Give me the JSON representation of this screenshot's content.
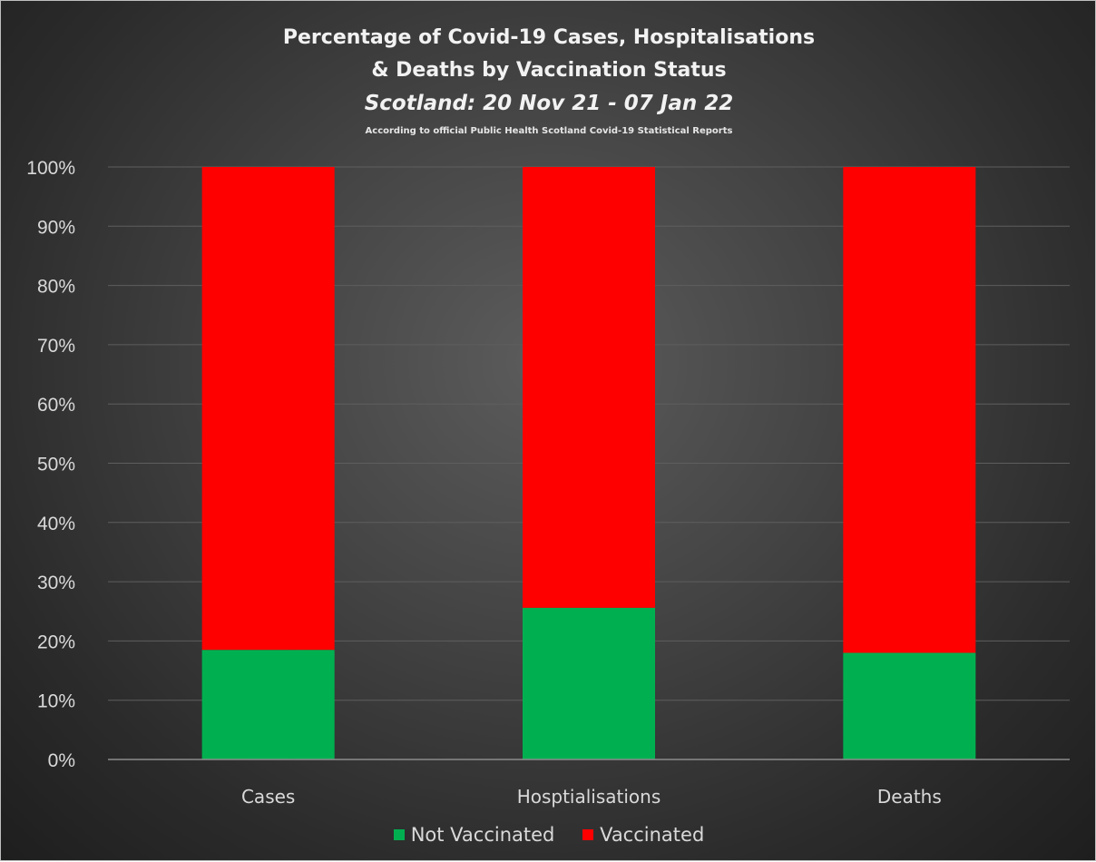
{
  "chart_data": {
    "type": "bar",
    "stacked": true,
    "title_lines": [
      "Percentage of Covid-19 Cases, Hospitalisations",
      "& Deaths by Vaccination Status"
    ],
    "subtitle": "Scotland: 20 Nov 21 - 07 Jan 22",
    "note": "According to official Public Health Scotland Covid-19 Statistical Reports",
    "categories": [
      "Cases",
      "Hosptialisations",
      "Deaths"
    ],
    "series": [
      {
        "name": "Not Vaccinated",
        "color": "#00b050",
        "values": [
          18.5,
          25.6,
          18.0
        ]
      },
      {
        "name": "Vaccinated",
        "color": "#ff0000",
        "values": [
          81.5,
          74.4,
          82.0
        ]
      }
    ],
    "yticks": [
      "0%",
      "10%",
      "20%",
      "30%",
      "40%",
      "50%",
      "60%",
      "70%",
      "80%",
      "90%",
      "100%"
    ],
    "ylim": [
      0,
      100
    ],
    "grid": true,
    "legend_position": "bottom",
    "background_color": "#404040"
  }
}
